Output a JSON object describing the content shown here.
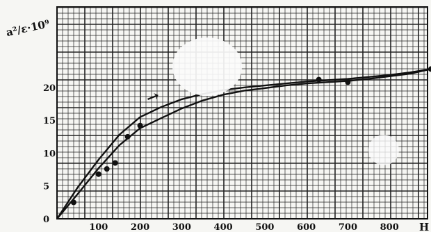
{
  "chart_data": {
    "type": "line",
    "ylabel": "a²/ε·10⁹",
    "xlabel": "H",
    "x_ticks": [
      "100",
      "200",
      "300",
      "400",
      "500",
      "600",
      "700",
      "800"
    ],
    "y_ticks": [
      "0",
      "5",
      "10",
      "15",
      "20"
    ],
    "xlim": [
      0,
      900
    ],
    "ylim": [
      0,
      25
    ],
    "grid": true,
    "series": [
      {
        "x": [
          0,
          50,
          100,
          150,
          200,
          250,
          300,
          350,
          400,
          450,
          500,
          550,
          600,
          650,
          700,
          750,
          800,
          850,
          900
        ],
        "y": [
          0,
          4.8,
          9.0,
          12.8,
          15.5,
          17.0,
          18.2,
          19.0,
          19.6,
          20.0,
          20.3,
          20.6,
          20.9,
          21.1,
          21.3,
          21.6,
          21.9,
          22.3,
          22.8
        ],
        "markers_x": [
          40,
          100,
          140,
          170,
          630,
          700,
          900
        ],
        "markers_y": [
          2.5,
          6.8,
          8.5,
          12.5,
          21.2,
          20.8,
          22.8
        ]
      },
      {
        "x": [
          0,
          50,
          100,
          150,
          200,
          250,
          300,
          350,
          400,
          450,
          500,
          550,
          600,
          650,
          700,
          750,
          800,
          850,
          900
        ],
        "y": [
          0,
          3.8,
          7.7,
          11.2,
          13.8,
          15.3,
          16.8,
          18.0,
          18.9,
          19.5,
          19.9,
          20.3,
          20.6,
          20.8,
          21.0,
          21.3,
          21.7,
          22.1,
          22.8
        ],
        "markers_x": [
          120,
          200
        ],
        "markers_y": [
          7.6,
          14.2
        ]
      }
    ],
    "annotations": [
      "→"
    ],
    "colors": {
      "ink": "#111111",
      "grid": "#222222",
      "paper": "#f6f6f3"
    }
  }
}
